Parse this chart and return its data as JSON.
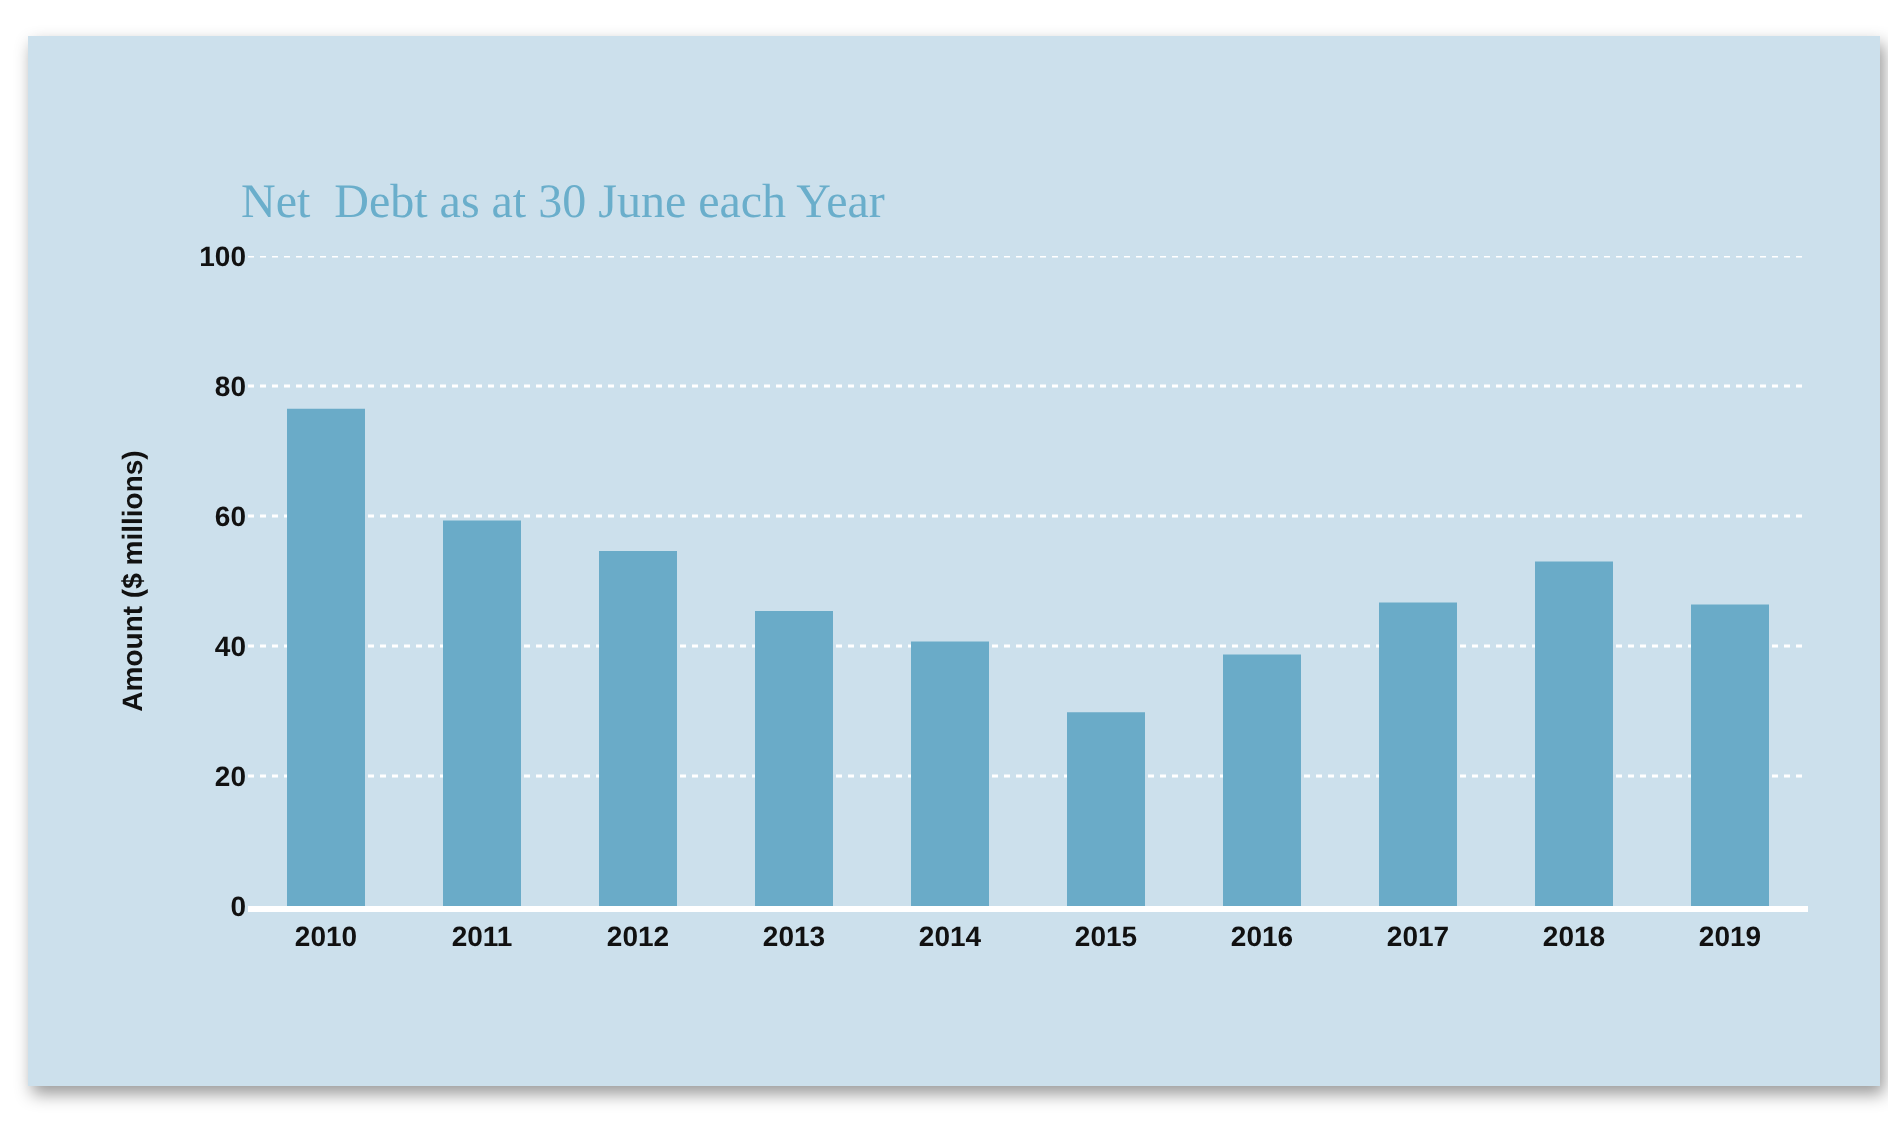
{
  "chart_data": {
    "type": "bar",
    "title": "Net  Debt as at 30 June each Year",
    "ylabel": "Amount ($ millions)",
    "categories": [
      "2010",
      "2011",
      "2012",
      "2013",
      "2014",
      "2015",
      "2016",
      "2017",
      "2018",
      "2019"
    ],
    "values": [
      76.5,
      59.3,
      54.6,
      45.4,
      40.7,
      29.8,
      38.7,
      46.7,
      53.0,
      46.4
    ],
    "color": "#6aabc8",
    "ylim": [
      0,
      100
    ],
    "yticks": [
      0,
      20,
      40,
      60,
      80,
      100
    ],
    "grid": "y",
    "line_style": "dotted"
  }
}
